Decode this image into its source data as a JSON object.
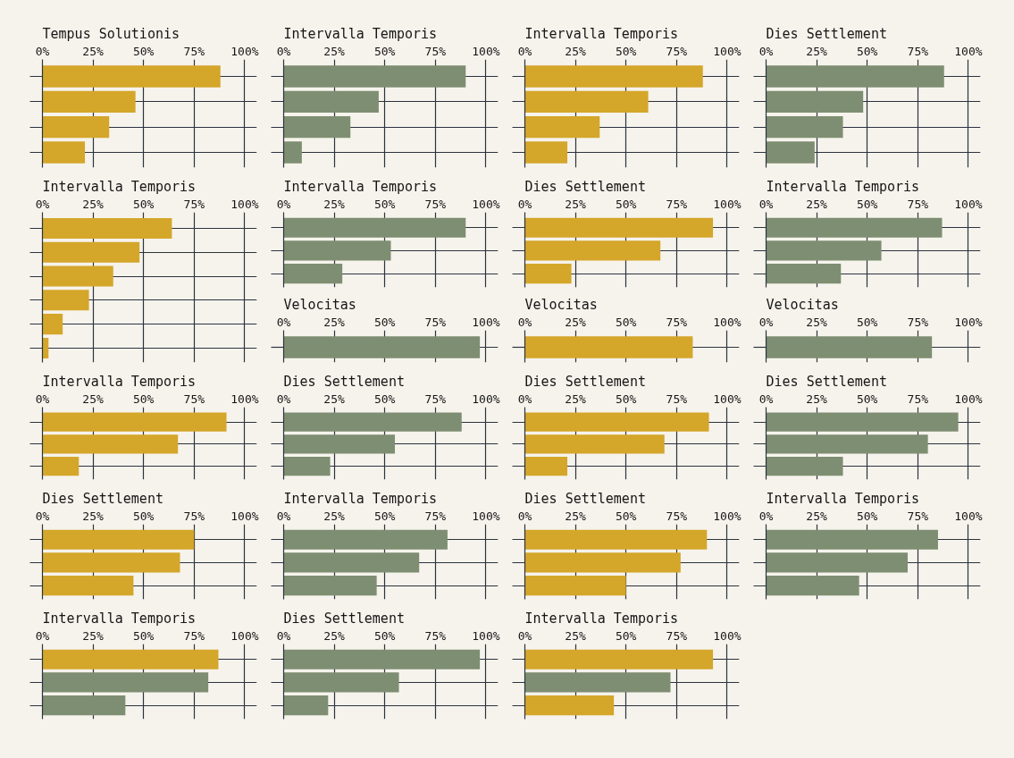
{
  "chart_data": [
    {
      "type": "bar",
      "orientation": "horizontal",
      "title": "Tempus Solutionis",
      "categories": [
        null,
        null,
        null,
        null
      ],
      "values": [
        88,
        46,
        33,
        21
      ],
      "color": "#d4a62a",
      "xlim": [
        0,
        106
      ],
      "xticks": [
        {
          "value": 0,
          "label": "0%"
        },
        {
          "value": 25,
          "label": "25%"
        },
        {
          "value": 50,
          "label": "50%"
        },
        {
          "value": 75,
          "label": "75%"
        },
        {
          "value": 100,
          "label": "100%"
        }
      ],
      "grid": true
    },
    {
      "type": "bar",
      "orientation": "horizontal",
      "title": "Intervalla Temporis",
      "categories": [
        null,
        null,
        null,
        null
      ],
      "values": [
        90,
        47,
        33,
        9
      ],
      "color": "#7e8e72",
      "xlim": [
        0,
        106
      ],
      "xticks": [
        {
          "value": 0,
          "label": "0%"
        },
        {
          "value": 25,
          "label": "25%"
        },
        {
          "value": 50,
          "label": "50%"
        },
        {
          "value": 75,
          "label": "75%"
        },
        {
          "value": 100,
          "label": "100%"
        }
      ],
      "grid": true
    },
    {
      "type": "bar",
      "orientation": "horizontal",
      "title": "Intervalla Temporis",
      "categories": [
        null,
        null,
        null,
        null
      ],
      "values": [
        88,
        61,
        37,
        21
      ],
      "color": "#d4a62a",
      "xlim": [
        0,
        106
      ],
      "xticks": [
        {
          "value": 0,
          "label": "0%"
        },
        {
          "value": 25,
          "label": "25%"
        },
        {
          "value": 50,
          "label": "50%"
        },
        {
          "value": 75,
          "label": "75%"
        },
        {
          "value": 100,
          "label": "100%"
        }
      ],
      "grid": true
    },
    {
      "type": "bar",
      "orientation": "horizontal",
      "title": "Dies Settlement",
      "categories": [
        null,
        null,
        null,
        null
      ],
      "values": [
        88,
        48,
        38,
        24
      ],
      "color": "#7e8e72",
      "xlim": [
        0,
        106
      ],
      "xticks": [
        {
          "value": 0,
          "label": "0%"
        },
        {
          "value": 25,
          "label": "25%"
        },
        {
          "value": 50,
          "label": "50%"
        },
        {
          "value": 75,
          "label": "75%"
        },
        {
          "value": 100,
          "label": "100%"
        }
      ],
      "grid": true
    },
    {
      "type": "bar",
      "orientation": "horizontal",
      "title": "Intervalla Temporis",
      "categories": [
        null,
        null,
        null,
        null,
        null,
        null
      ],
      "values": [
        64,
        48,
        35,
        23,
        10,
        3
      ],
      "color": "#d4a62a",
      "xlim": [
        0,
        106
      ],
      "xticks": [
        {
          "value": 0,
          "label": "0%"
        },
        {
          "value": 25,
          "label": "25%"
        },
        {
          "value": 50,
          "label": "50%"
        },
        {
          "value": 75,
          "label": "75%"
        },
        {
          "value": 100,
          "label": "100%"
        }
      ],
      "grid": true
    },
    {
      "type": "bar",
      "orientation": "horizontal",
      "title": "Intervalla Temporis",
      "categories": [
        null,
        null,
        null
      ],
      "values": [
        90,
        53,
        29
      ],
      "color": "#7e8e72",
      "xlim": [
        0,
        106
      ],
      "xticks": [
        {
          "value": 0,
          "label": "0%"
        },
        {
          "value": 25,
          "label": "25%"
        },
        {
          "value": 50,
          "label": "50%"
        },
        {
          "value": 75,
          "label": "75%"
        },
        {
          "value": 100,
          "label": "100%"
        }
      ],
      "grid": true
    },
    {
      "type": "bar",
      "orientation": "horizontal",
      "title": "Velocitas",
      "categories": [
        null
      ],
      "values": [
        97
      ],
      "color": "#7e8e72",
      "xlim": [
        0,
        106
      ],
      "xticks": [
        {
          "value": 0,
          "label": "0%"
        },
        {
          "value": 25,
          "label": "25%"
        },
        {
          "value": 50,
          "label": "50%"
        },
        {
          "value": 75,
          "label": "75%"
        },
        {
          "value": 100,
          "label": "100%"
        }
      ],
      "grid": true
    },
    {
      "type": "bar",
      "orientation": "horizontal",
      "title": "Dies Settlement",
      "categories": [
        null,
        null,
        null
      ],
      "values": [
        93,
        67,
        23
      ],
      "color": "#d4a62a",
      "xlim": [
        0,
        106
      ],
      "xticks": [
        {
          "value": 0,
          "label": "0%"
        },
        {
          "value": 25,
          "label": "25%"
        },
        {
          "value": 50,
          "label": "50%"
        },
        {
          "value": 75,
          "label": "75%"
        },
        {
          "value": 100,
          "label": "100%"
        }
      ],
      "grid": true
    },
    {
      "type": "bar",
      "orientation": "horizontal",
      "title": "Velocitas",
      "categories": [
        null
      ],
      "values": [
        83
      ],
      "color": "#d4a62a",
      "xlim": [
        0,
        106
      ],
      "xticks": [
        {
          "value": 0,
          "label": "0%"
        },
        {
          "value": 25,
          "label": "25%"
        },
        {
          "value": 50,
          "label": "50%"
        },
        {
          "value": 75,
          "label": "75%"
        },
        {
          "value": 100,
          "label": "100%"
        }
      ],
      "grid": true
    },
    {
      "type": "bar",
      "orientation": "horizontal",
      "title": "Intervalla Temporis",
      "categories": [
        null,
        null,
        null
      ],
      "values": [
        87,
        57,
        37
      ],
      "color": "#7e8e72",
      "xlim": [
        0,
        106
      ],
      "xticks": [
        {
          "value": 0,
          "label": "0%"
        },
        {
          "value": 25,
          "label": "25%"
        },
        {
          "value": 50,
          "label": "50%"
        },
        {
          "value": 75,
          "label": "75%"
        },
        {
          "value": 100,
          "label": "100%"
        }
      ],
      "grid": true
    },
    {
      "type": "bar",
      "orientation": "horizontal",
      "title": "Velocitas",
      "categories": [
        null
      ],
      "values": [
        82
      ],
      "color": "#7e8e72",
      "xlim": [
        0,
        106
      ],
      "xticks": [
        {
          "value": 0,
          "label": "0%"
        },
        {
          "value": 25,
          "label": "25%"
        },
        {
          "value": 50,
          "label": "50%"
        },
        {
          "value": 75,
          "label": "75%"
        },
        {
          "value": 100,
          "label": "100%"
        }
      ],
      "grid": true
    },
    {
      "type": "bar",
      "orientation": "horizontal",
      "title": "Intervalla Temporis",
      "categories": [
        null,
        null,
        null
      ],
      "values": [
        91,
        67,
        18
      ],
      "color": "#d4a62a",
      "xlim": [
        0,
        106
      ],
      "xticks": [
        {
          "value": 0,
          "label": "0%"
        },
        {
          "value": 25,
          "label": "25%"
        },
        {
          "value": 50,
          "label": "50%"
        },
        {
          "value": 75,
          "label": "75%"
        },
        {
          "value": 100,
          "label": "100%"
        }
      ],
      "grid": true
    },
    {
      "type": "bar",
      "orientation": "horizontal",
      "title": "Dies Settlement",
      "categories": [
        null,
        null,
        null
      ],
      "values": [
        88,
        55,
        23
      ],
      "color": "#7e8e72",
      "xlim": [
        0,
        106
      ],
      "xticks": [
        {
          "value": 0,
          "label": "0%"
        },
        {
          "value": 25,
          "label": "25%"
        },
        {
          "value": 50,
          "label": "50%"
        },
        {
          "value": 75,
          "label": "75%"
        },
        {
          "value": 100,
          "label": "100%"
        }
      ],
      "grid": true
    },
    {
      "type": "bar",
      "orientation": "horizontal",
      "title": "Dies Settlement",
      "categories": [
        null,
        null,
        null
      ],
      "values": [
        91,
        69,
        21
      ],
      "color": "#d4a62a",
      "xlim": [
        0,
        106
      ],
      "xticks": [
        {
          "value": 0,
          "label": "0%"
        },
        {
          "value": 25,
          "label": "25%"
        },
        {
          "value": 50,
          "label": "50%"
        },
        {
          "value": 75,
          "label": "75%"
        },
        {
          "value": 100,
          "label": "100%"
        }
      ],
      "grid": true
    },
    {
      "type": "bar",
      "orientation": "horizontal",
      "title": "Dies Settlement",
      "categories": [
        null,
        null,
        null
      ],
      "values": [
        95,
        80,
        38
      ],
      "color": "#7e8e72",
      "xlim": [
        0,
        106
      ],
      "xticks": [
        {
          "value": 0,
          "label": "0%"
        },
        {
          "value": 25,
          "label": "25%"
        },
        {
          "value": 50,
          "label": "50%"
        },
        {
          "value": 75,
          "label": "75%"
        },
        {
          "value": 100,
          "label": "100%"
        }
      ],
      "grid": true
    },
    {
      "type": "bar",
      "orientation": "horizontal",
      "title": "Dies Settlement",
      "categories": [
        null,
        null,
        null
      ],
      "values": [
        75,
        68,
        45
      ],
      "color": "#d4a62a",
      "xlim": [
        0,
        106
      ],
      "xticks": [
        {
          "value": 0,
          "label": "0%"
        },
        {
          "value": 25,
          "label": "25%"
        },
        {
          "value": 50,
          "label": "50%"
        },
        {
          "value": 75,
          "label": "75%"
        },
        {
          "value": 100,
          "label": "100%"
        }
      ],
      "grid": true
    },
    {
      "type": "bar",
      "orientation": "horizontal",
      "title": "Intervalla Temporis",
      "categories": [
        null,
        null,
        null
      ],
      "values": [
        81,
        67,
        46
      ],
      "color": "#7e8e72",
      "xlim": [
        0,
        106
      ],
      "xticks": [
        {
          "value": 0,
          "label": "0%"
        },
        {
          "value": 25,
          "label": "25%"
        },
        {
          "value": 50,
          "label": "50%"
        },
        {
          "value": 75,
          "label": "75%"
        },
        {
          "value": 100,
          "label": "100%"
        }
      ],
      "grid": true
    },
    {
      "type": "bar",
      "orientation": "horizontal",
      "title": "Dies Settlement",
      "categories": [
        null,
        null,
        null
      ],
      "values": [
        90,
        77,
        50
      ],
      "color": "#d4a62a",
      "xlim": [
        0,
        106
      ],
      "xticks": [
        {
          "value": 0,
          "label": "0%"
        },
        {
          "value": 25,
          "label": "25%"
        },
        {
          "value": 50,
          "label": "50%"
        },
        {
          "value": 75,
          "label": "75%"
        },
        {
          "value": 100,
          "label": "100%"
        }
      ],
      "grid": true
    },
    {
      "type": "bar",
      "orientation": "horizontal",
      "title": "Intervalla Temporis",
      "categories": [
        null,
        null,
        null
      ],
      "values": [
        85,
        70,
        46
      ],
      "color": "#7e8e72",
      "xlim": [
        0,
        106
      ],
      "xticks": [
        {
          "value": 0,
          "label": "0%"
        },
        {
          "value": 25,
          "label": "25%"
        },
        {
          "value": 50,
          "label": "50%"
        },
        {
          "value": 75,
          "label": "75%"
        },
        {
          "value": 100,
          "label": "100%"
        }
      ],
      "grid": true
    },
    {
      "type": "bar",
      "orientation": "horizontal",
      "title": "Intervalla Temporis",
      "categories": [
        null,
        null,
        null
      ],
      "values": [
        87,
        82,
        41
      ],
      "colors": [
        "#d4a62a",
        "#7e8e72",
        "#7e8e72"
      ],
      "xlim": [
        0,
        106
      ],
      "xticks": [
        {
          "value": 0,
          "label": "0%"
        },
        {
          "value": 25,
          "label": "25%"
        },
        {
          "value": 50,
          "label": "50%"
        },
        {
          "value": 75,
          "label": "75%"
        },
        {
          "value": 100,
          "label": "100%"
        }
      ],
      "grid": true
    },
    {
      "type": "bar",
      "orientation": "horizontal",
      "title": "Dies Settlement",
      "categories": [
        null,
        null,
        null
      ],
      "values": [
        97,
        57,
        22
      ],
      "color": "#7e8e72",
      "xlim": [
        0,
        106
      ],
      "xticks": [
        {
          "value": 0,
          "label": "0%"
        },
        {
          "value": 25,
          "label": "25%"
        },
        {
          "value": 50,
          "label": "50%"
        },
        {
          "value": 75,
          "label": "75%"
        },
        {
          "value": 100,
          "label": "100%"
        }
      ],
      "grid": true
    },
    {
      "type": "bar",
      "orientation": "horizontal",
      "title": "Intervalla Temporis",
      "categories": [
        null,
        null,
        null
      ],
      "values": [
        93,
        72,
        44
      ],
      "colors": [
        "#d4a62a",
        "#7e8e72",
        "#d4a62a"
      ],
      "xlim": [
        0,
        106
      ],
      "xticks": [
        {
          "value": 0,
          "label": "0%"
        },
        {
          "value": 25,
          "label": "25%"
        },
        {
          "value": 50,
          "label": "50%"
        },
        {
          "value": 75,
          "label": "75%"
        },
        {
          "value": 100,
          "label": "100%"
        }
      ],
      "grid": true
    }
  ]
}
